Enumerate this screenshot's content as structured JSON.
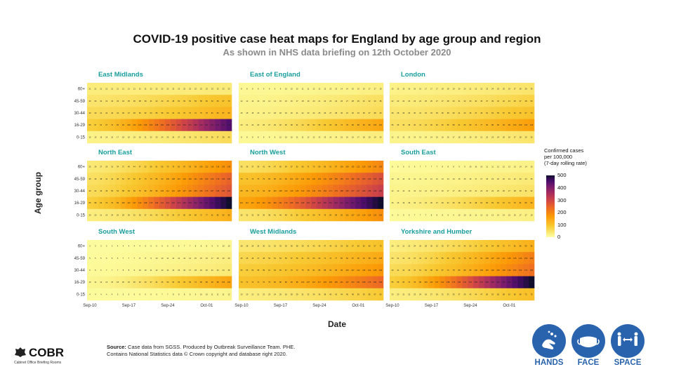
{
  "title": "COVID-19 positive case heat maps for England by age group and region",
  "subtitle": "As shown in NHS data briefing on 12th October 2020",
  "chart_data": {
    "type": "heatmap",
    "xlabel": "Date",
    "ylabel": "Age group",
    "age_groups": [
      "60+",
      "45-59",
      "30-44",
      "16-29",
      "0-15"
    ],
    "date_ticks": [
      "Sep-10",
      "Sep-17",
      "Sep-24",
      "Oct-01"
    ],
    "n_days": 26,
    "legend": {
      "title_lines": [
        "Confirmed cases",
        "per 100,000",
        "(7-day rolling rate)"
      ],
      "ticks": [
        "500",
        "400",
        "300",
        "200",
        "100",
        "0"
      ],
      "range": [
        0,
        500
      ]
    },
    "regions": [
      {
        "name": "East Midlands",
        "rates": {
          "60+": [
            21,
            23
          ],
          "45-59": [
            30,
            70
          ],
          "30-44": [
            40,
            90
          ],
          "16-29": [
            55,
            420
          ],
          "0-15": [
            15,
            40
          ]
        }
      },
      {
        "name": "East of England",
        "rates": {
          "60+": [
            8,
            18
          ],
          "45-59": [
            12,
            35
          ],
          "30-44": [
            15,
            40
          ],
          "16-29": [
            20,
            110
          ],
          "0-15": [
            8,
            20
          ]
        }
      },
      {
        "name": "London",
        "rates": {
          "60+": [
            15,
            30
          ],
          "45-59": [
            22,
            50
          ],
          "30-44": [
            28,
            70
          ],
          "16-29": [
            35,
            120
          ],
          "0-15": [
            12,
            30
          ]
        }
      },
      {
        "name": "North East",
        "rates": {
          "60+": [
            25,
            140
          ],
          "45-59": [
            35,
            200
          ],
          "30-44": [
            40,
            220
          ],
          "16-29": [
            55,
            500
          ],
          "0-15": [
            20,
            95
          ]
        }
      },
      {
        "name": "North West",
        "rates": {
          "60+": [
            35,
            150
          ],
          "45-59": [
            70,
            230
          ],
          "30-44": [
            85,
            260
          ],
          "16-29": [
            110,
            500
          ],
          "0-15": [
            30,
            140
          ]
        }
      },
      {
        "name": "South East",
        "rates": {
          "60+": [
            6,
            15
          ],
          "45-59": [
            10,
            25
          ],
          "30-44": [
            12,
            32
          ],
          "16-29": [
            15,
            90
          ],
          "0-15": [
            6,
            18
          ]
        }
      },
      {
        "name": "South West",
        "rates": {
          "60+": [
            3,
            10
          ],
          "45-59": [
            5,
            20
          ],
          "30-44": [
            6,
            25
          ],
          "16-29": [
            10,
            110
          ],
          "0-15": [
            4,
            12
          ]
        }
      },
      {
        "name": "West Midlands",
        "rates": {
          "60+": [
            28,
            70
          ],
          "45-59": [
            45,
            105
          ],
          "30-44": [
            55,
            130
          ],
          "16-29": [
            70,
            190
          ],
          "0-15": [
            20,
            60
          ]
        }
      },
      {
        "name": "Yorkshire and Humber",
        "rates": {
          "60+": [
            20,
            95
          ],
          "45-59": [
            30,
            160
          ],
          "30-44": [
            40,
            180
          ],
          "16-29": [
            55,
            500
          ],
          "0-15": [
            20,
            75
          ]
        }
      }
    ]
  },
  "source": {
    "label": "Source:",
    "line1": "Case data from SGSS. Produced by Outbreak Surveillance Team. PHE.",
    "line2": "Contains National Statistics data © Crown copyright and database right 2020."
  },
  "branding": {
    "name": "COBR",
    "subtitle": "Cabinet Office Briefing Rooms"
  },
  "campaign": [
    "HANDS",
    "FACE",
    "SPACE"
  ]
}
